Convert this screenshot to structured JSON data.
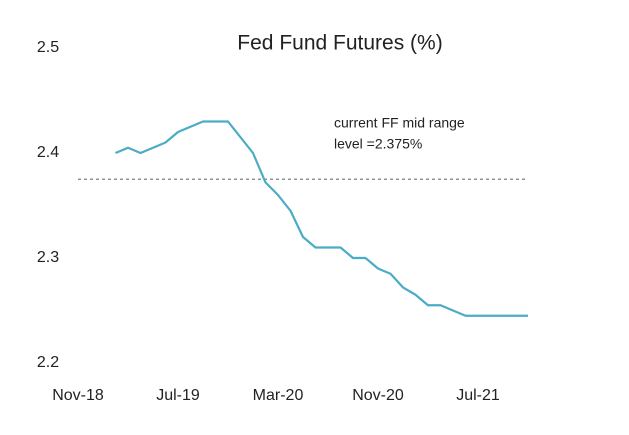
{
  "chart_data": {
    "type": "line",
    "title": "Fed Fund Futures (%)",
    "categories": [
      "Nov-18",
      null,
      null,
      null,
      null,
      null,
      null,
      null,
      "Jul-19",
      null,
      null,
      null,
      null,
      null,
      null,
      null,
      "Mar-20",
      null,
      null,
      null,
      null,
      null,
      null,
      null,
      "Nov-20",
      null,
      null,
      null,
      null,
      null,
      null,
      null,
      "Jul-21",
      null,
      null,
      null,
      null
    ],
    "series": [
      {
        "name": "Fed Fund Futures",
        "color": "#4bacc6",
        "values": [
          null,
          null,
          null,
          2.4,
          2.405,
          2.4,
          2.405,
          2.41,
          2.42,
          2.425,
          2.43,
          2.43,
          2.43,
          2.415,
          2.4,
          2.372,
          2.36,
          2.345,
          2.32,
          2.31,
          2.31,
          2.31,
          2.3,
          2.3,
          2.29,
          2.285,
          2.272,
          2.265,
          2.255,
          2.255,
          2.25,
          2.245,
          2.245,
          2.245,
          2.245,
          2.245,
          2.245
        ]
      }
    ],
    "ylim": [
      2.2,
      2.5
    ],
    "yticks": [
      2.2,
      2.3,
      2.4,
      2.5
    ],
    "grid": false,
    "reference_line": {
      "value": 2.375,
      "color": "#7f7f7f",
      "style": "dashed"
    },
    "annotation": [
      "current FF mid range",
      "level  =2.375%"
    ]
  }
}
